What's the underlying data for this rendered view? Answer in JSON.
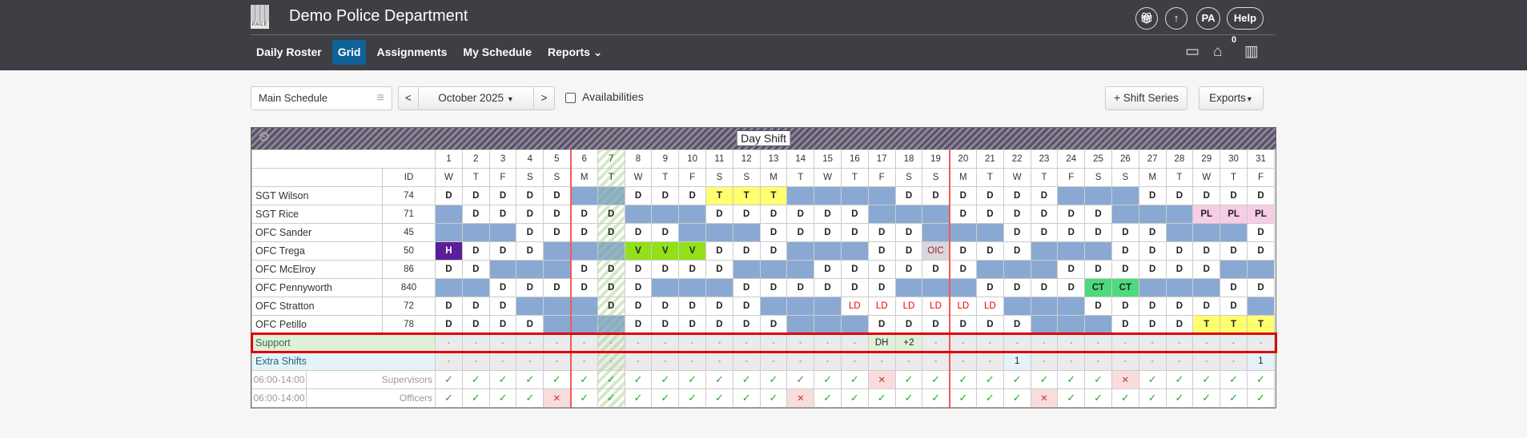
{
  "header": {
    "logo_text": "PACE",
    "title": "Demo Police Department",
    "nav": [
      {
        "label": "Daily Roster"
      },
      {
        "label": "Grid",
        "active": true
      },
      {
        "label": "Assignments"
      },
      {
        "label": "My Schedule"
      },
      {
        "label": "Reports"
      }
    ],
    "reports_chevron": "⌄",
    "avatar": "PA",
    "help": "Help",
    "inbox_count": "0",
    "icons": [
      "gift-icon",
      "arrow-up-icon",
      "calendar-icon",
      "inbox-icon",
      "building-icon"
    ]
  },
  "toolbar": {
    "schedule": "Main Schedule",
    "prev": "<",
    "month": "October 2025",
    "next": ">",
    "availabilities": "Availabilities",
    "availabilities_checked": false,
    "shift_series": "+ Shift Series",
    "exports": "Exports"
  },
  "grid": {
    "shift_title": "Day Shift",
    "id_header": "ID",
    "today_column": 7,
    "period_breaks_after": [
      5,
      19
    ],
    "dates": [
      "1",
      "2",
      "3",
      "4",
      "5",
      "6",
      "7",
      "8",
      "9",
      "10",
      "11",
      "12",
      "13",
      "14",
      "15",
      "16",
      "17",
      "18",
      "19",
      "20",
      "21",
      "22",
      "23",
      "24",
      "25",
      "26",
      "27",
      "28",
      "29",
      "30",
      "31"
    ],
    "dows": [
      "W",
      "T",
      "F",
      "S",
      "S",
      "M",
      "T",
      "W",
      "T",
      "F",
      "S",
      "S",
      "M",
      "T",
      "W",
      "T",
      "F",
      "S",
      "S",
      "M",
      "T",
      "W",
      "T",
      "F",
      "S",
      "S",
      "M",
      "T",
      "W",
      "T",
      "F"
    ],
    "code_colors": {
      "T": "#ffff70",
      "V": "#93e01a",
      "H": "#5c1e96",
      "PL": "#f7cde6",
      "CT": "#4cd97f",
      "OIC": "#d9d7db",
      "LD": "#ffffff",
      "off": "#89a9d3"
    },
    "employees": [
      {
        "name": "SGT Wilson",
        "id": "74",
        "cells": [
          "D",
          "D",
          "D",
          "D",
          "D",
          "",
          "",
          "D",
          "D",
          "D",
          "T",
          "T",
          "T",
          "",
          "",
          "",
          "",
          "D",
          "D",
          "D",
          "D",
          "D",
          "D",
          "",
          "",
          "",
          "D",
          "D",
          "D",
          "D",
          "D"
        ]
      },
      {
        "name": "SGT Rice",
        "id": "71",
        "cells": [
          "",
          "D",
          "D",
          "D",
          "D",
          "D",
          "D",
          "",
          "",
          "",
          "D",
          "D",
          "D",
          "D",
          "D",
          "D",
          "",
          "",
          "",
          "D",
          "D",
          "D",
          "D",
          "D",
          "D",
          "",
          "",
          "",
          "PL",
          "PL",
          "PL"
        ]
      },
      {
        "name": "OFC Sander",
        "id": "45",
        "cells": [
          "",
          "",
          "",
          "D",
          "D",
          "D",
          "D",
          "D",
          "D",
          "",
          "",
          "",
          "D",
          "D",
          "D",
          "D",
          "D",
          "D",
          "",
          "",
          "",
          "D",
          "D",
          "D",
          "D",
          "D",
          "D",
          "",
          "",
          "",
          "D"
        ]
      },
      {
        "name": "OFC Trega",
        "id": "50",
        "cells": [
          "H",
          "D",
          "D",
          "D",
          "",
          "",
          "",
          "V",
          "V",
          "V",
          "D",
          "D",
          "D",
          "",
          "",
          "",
          "D",
          "D",
          "OIC",
          "D",
          "D",
          "D",
          "",
          "",
          "",
          "D",
          "D",
          "D",
          "D",
          "D",
          "D"
        ]
      },
      {
        "name": "OFC McElroy",
        "id": "86",
        "cells": [
          "D",
          "D",
          "",
          "",
          "",
          "D",
          "D",
          "D",
          "D",
          "D",
          "D",
          "",
          "",
          "",
          "D",
          "D",
          "D",
          "D",
          "D",
          "D",
          "",
          "",
          "",
          "D",
          "D",
          "D",
          "D",
          "D",
          "D",
          "",
          ""
        ]
      },
      {
        "name": "OFC Pennyworth",
        "id": "840",
        "cells": [
          "",
          "",
          "D",
          "D",
          "D",
          "D",
          "D",
          "D",
          "",
          "",
          "",
          "D",
          "D",
          "D",
          "D",
          "D",
          "D",
          "",
          "",
          "",
          "D",
          "D",
          "D",
          "D",
          "CT",
          "CT",
          "",
          "",
          "",
          "D",
          "D"
        ]
      },
      {
        "name": "OFC Stratton",
        "id": "72",
        "cells": [
          "D",
          "D",
          "D",
          "",
          "",
          "",
          "D",
          "D",
          "D",
          "D",
          "D",
          "D",
          "",
          "",
          "",
          "LD",
          "LD",
          "LD",
          "LD",
          "LD",
          "LD",
          "",
          "",
          "",
          "D",
          "D",
          "D",
          "D",
          "D",
          "D",
          ""
        ]
      },
      {
        "name": "OFC Petillo",
        "id": "78",
        "cells": [
          "D",
          "D",
          "D",
          "D",
          "",
          "",
          "",
          "D",
          "D",
          "D",
          "D",
          "D",
          "D",
          "",
          "",
          "",
          "D",
          "D",
          "D",
          "D",
          "D",
          "D",
          "",
          "",
          "",
          "D",
          "D",
          "D",
          "T",
          "T",
          "T"
        ]
      }
    ],
    "support": {
      "label": "Support",
      "cells": [
        "-",
        "-",
        "-",
        "-",
        "-",
        "-",
        "-",
        "-",
        "-",
        "-",
        "-",
        "-",
        "-",
        "-",
        "-",
        "-",
        "DH",
        "+2",
        "-",
        "-",
        "-",
        "-",
        "-",
        "-",
        "-",
        "-",
        "-",
        "-",
        "-",
        "-",
        "-"
      ]
    },
    "extra": {
      "label": "Extra Shifts",
      "cells": [
        "-",
        "-",
        "-",
        "-",
        "-",
        "-",
        "-",
        "-",
        "-",
        "-",
        "-",
        "-",
        "-",
        "-",
        "-",
        "-",
        "-",
        "-",
        "-",
        "-",
        "-",
        "1",
        "-",
        "-",
        "-",
        "-",
        "-",
        "-",
        "-",
        "-",
        "1"
      ]
    },
    "coverage": [
      {
        "time": "06:00-14:00",
        "label": "Supervisors",
        "cells": [
          "ok",
          "ok",
          "ok",
          "ok",
          "ok",
          "ok",
          "ok",
          "ok",
          "ok",
          "ok",
          "ok",
          "ok",
          "ok",
          "ok",
          "ok",
          "ok",
          "x",
          "ok",
          "ok",
          "ok",
          "ok",
          "ok",
          "ok",
          "ok",
          "ok",
          "x",
          "ok",
          "ok",
          "ok",
          "ok",
          "ok"
        ]
      },
      {
        "time": "06:00-14:00",
        "label": "Officers",
        "cells": [
          "ok",
          "ok",
          "ok",
          "ok",
          "x",
          "ok",
          "ok",
          "ok",
          "ok",
          "ok",
          "ok",
          "ok",
          "ok",
          "x",
          "ok",
          "ok",
          "ok",
          "ok",
          "ok",
          "ok",
          "ok",
          "ok",
          "x",
          "ok",
          "ok",
          "ok",
          "ok",
          "ok",
          "ok",
          "ok",
          "ok"
        ]
      }
    ],
    "check_glyph": "✓",
    "x_glyph": "✕"
  }
}
